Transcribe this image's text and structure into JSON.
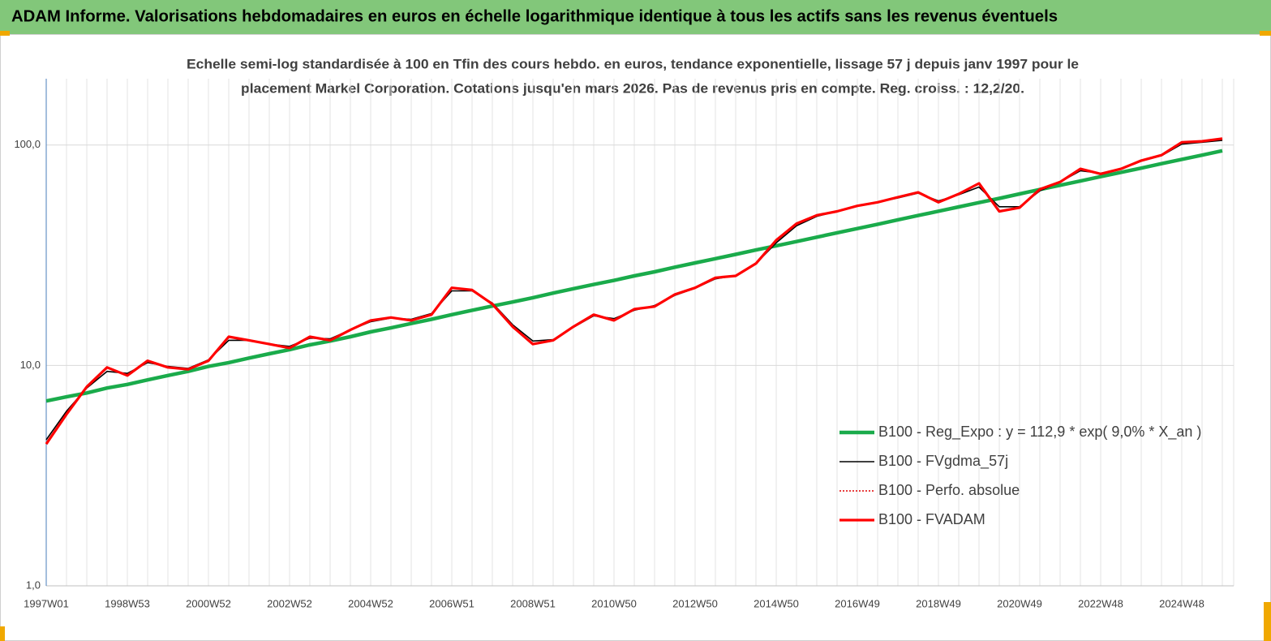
{
  "chart_data": {
    "type": "line",
    "title": "ADAM Informe. Valorisations hebdomadaires en euros en échelle logarithmique identique à tous les actifs sans les revenus éventuels",
    "subtitle": [
      "Echelle semi-log standardisée à 100 en Tfin des cours hebdo. en euros, tendance exponentielle, lissage 57 j depuis janv 1997 pour le",
      "placement Markel Corporation. Cotations jusqu'en mars 2026.  Pas de revenus pris en compte. Reg. croiss. : 12,2/20."
    ],
    "categories": [
      "1997W01",
      null,
      null,
      null,
      "1998W53",
      null,
      null,
      null,
      "2000W52",
      null,
      null,
      null,
      "2002W52",
      null,
      null,
      null,
      "2004W52",
      null,
      null,
      null,
      "2006W51",
      null,
      null,
      null,
      "2008W51",
      null,
      null,
      null,
      "2010W50",
      null,
      null,
      null,
      "2012W50",
      null,
      null,
      null,
      "2014W50",
      null,
      null,
      null,
      "2016W49",
      null,
      null,
      null,
      "2018W49",
      null,
      null,
      null,
      "2020W49",
      null,
      null,
      null,
      "2022W48",
      null,
      null,
      null,
      "2024W48",
      null,
      null
    ],
    "log_scale": true,
    "ylim": [
      1,
      200
    ],
    "yticks": [
      {
        "value": 1,
        "label": "1,0"
      },
      {
        "value": 10,
        "label": "10,0"
      },
      {
        "value": 100,
        "label": "100,0"
      }
    ],
    "grid": true,
    "legend": "lower right",
    "series": [
      {
        "name": "B100 - Reg_Expo : y = 112,9 * exp( 9,0% *  X_an )",
        "color": "#1aab4b",
        "width": 4.5,
        "dash": "none",
        "values": [
          6.9,
          7.2,
          7.5,
          7.9,
          8.2,
          8.6,
          9.0,
          9.4,
          9.9,
          10.3,
          10.8,
          11.3,
          11.8,
          12.4,
          12.9,
          13.5,
          14.2,
          14.8,
          15.5,
          16.2,
          17.0,
          17.8,
          18.6,
          19.4,
          20.3,
          21.3,
          22.3,
          23.3,
          24.3,
          25.5,
          26.6,
          27.9,
          29.2,
          30.5,
          31.9,
          33.4,
          34.9,
          36.5,
          38.2,
          40.0,
          41.8,
          43.7,
          45.8,
          47.9,
          50.1,
          52.4,
          54.8,
          57.3,
          60.0,
          62.8,
          65.7,
          68.7,
          71.9,
          75.2,
          78.6,
          82.3,
          86.1,
          90.0,
          94.2
        ]
      },
      {
        "name": "B100 - FVgdma_57j",
        "color": "#000000",
        "width": 1.6,
        "dash": "none",
        "values": [
          4.6,
          6.2,
          7.9,
          9.4,
          9.2,
          10.3,
          9.9,
          9.7,
          10.6,
          13.0,
          13.0,
          12.5,
          12.2,
          13.3,
          13.2,
          14.5,
          15.8,
          16.4,
          16.2,
          17.2,
          21.8,
          21.8,
          19.2,
          15.3,
          12.9,
          13.1,
          14.9,
          16.8,
          16.3,
          17.8,
          18.7,
          20.8,
          22.4,
          24.7,
          25.6,
          29.0,
          36.0,
          43.0,
          47.5,
          50.0,
          52.8,
          55.0,
          57.5,
          60.5,
          55.8,
          59.5,
          64.5,
          52.5,
          52.5,
          62.0,
          68.0,
          76.5,
          74.5,
          78.0,
          84.5,
          89.5,
          101,
          103,
          105
        ]
      },
      {
        "name": "B100 - Perfo. absolue",
        "color": "#e00000",
        "width": 1.5,
        "dash": "2 2",
        "values": [
          4.4,
          6.0,
          8.0,
          9.8,
          9.0,
          10.5,
          9.8,
          9.6,
          10.5,
          13.5,
          13.0,
          12.5,
          12.0,
          13.5,
          13.0,
          14.5,
          16.0,
          16.5,
          16.0,
          17.0,
          22.5,
          22.0,
          19.0,
          15.0,
          12.5,
          13.0,
          15.0,
          17.0,
          16.0,
          18.0,
          18.5,
          21.0,
          22.5,
          25.0,
          25.5,
          29.0,
          37.0,
          44.0,
          48.0,
          50.0,
          53.0,
          55.0,
          58.0,
          61.0,
          55.0,
          60.0,
          67.0,
          50.0,
          52.0,
          63.0,
          68.0,
          78.0,
          74.0,
          78.0,
          85.0,
          90.0,
          103,
          104,
          107
        ]
      },
      {
        "name": "B100 - FVADAM",
        "color": "#ff0000",
        "width": 3.2,
        "dash": "none",
        "values": [
          4.4,
          6.0,
          8.0,
          9.8,
          9.0,
          10.5,
          9.8,
          9.6,
          10.5,
          13.5,
          13.0,
          12.5,
          12.0,
          13.5,
          13.0,
          14.5,
          16.0,
          16.5,
          16.0,
          17.0,
          22.5,
          22.0,
          19.0,
          15.0,
          12.5,
          13.0,
          15.0,
          17.0,
          16.0,
          18.0,
          18.5,
          21.0,
          22.5,
          25.0,
          25.5,
          29.0,
          37.0,
          44.0,
          48.0,
          50.0,
          53.0,
          55.0,
          58.0,
          61.0,
          55.0,
          60.0,
          67.0,
          50.0,
          52.0,
          63.0,
          68.0,
          78.0,
          74.0,
          78.0,
          85.0,
          90.0,
          103,
          104,
          107
        ]
      }
    ]
  }
}
